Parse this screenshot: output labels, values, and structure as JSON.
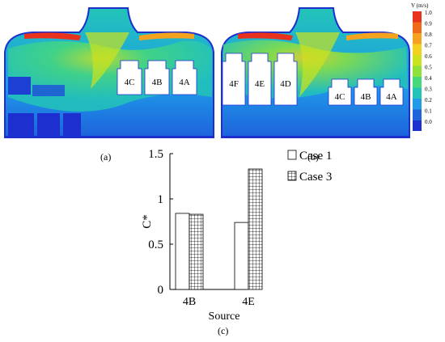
{
  "panels": {
    "a": {
      "caption": "(a)",
      "rooms": [
        "4C",
        "4B",
        "4A"
      ]
    },
    "b": {
      "caption": "(b)",
      "rooms": [
        "4F",
        "4E",
        "4D",
        "4C",
        "4B",
        "4A"
      ]
    }
  },
  "colorbar": {
    "label": "V (m/s)",
    "ticks": [
      "1.0",
      "0.9",
      "0.8",
      "0.7",
      "0.6",
      "0.5",
      "0.4",
      "0.3",
      "0.2",
      "0.1",
      "0.0"
    ],
    "colors": [
      "#e8321e",
      "#f06a1a",
      "#f5a31e",
      "#f3d21e",
      "#cbe21e",
      "#8fe23a",
      "#46d97a",
      "#22c4b8",
      "#1f9be8",
      "#1e62dc",
      "#1e2fcf"
    ]
  },
  "chart_data": {
    "type": "bar",
    "caption": "(c)",
    "xlabel": "Source",
    "ylabel": "C*",
    "categories": [
      "4B",
      "4E"
    ],
    "ylim": [
      0,
      1.5
    ],
    "yticks": [
      "0",
      "0.5",
      "1",
      "1.5"
    ],
    "legend_position": "top-right",
    "series": [
      {
        "name": "Case 1",
        "values": [
          0.84,
          0.74
        ],
        "fill": "white"
      },
      {
        "name": "Case 3",
        "values": [
          0.83,
          1.33
        ],
        "fill": "grid-hatch"
      }
    ]
  }
}
